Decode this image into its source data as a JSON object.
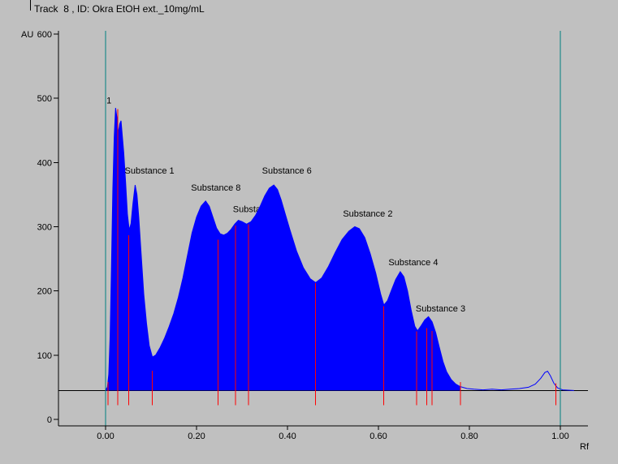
{
  "header": {
    "title": "Track  8 , ID: Okra EtOH ext._10mg/mL"
  },
  "colors": {
    "background": "#c0c0c0",
    "curve": "#0000ff",
    "fill": "#0000ff",
    "marker": "#ff0000",
    "track_line": "#008080",
    "axis": "#000000",
    "text": "#000000"
  },
  "chart_data": {
    "type": "area",
    "title": "Track  8 , ID: Okra EtOH ext._10mg/mL",
    "xlabel": "Rf",
    "ylabel": "AU",
    "xlim": [
      -0.1,
      1.06
    ],
    "ylim": [
      0,
      600
    ],
    "x_ticks": [
      {
        "value": 0.0,
        "label": "0.00"
      },
      {
        "value": 0.2,
        "label": "0.20"
      },
      {
        "value": 0.4,
        "label": "0.40"
      },
      {
        "value": 0.6,
        "label": "0.60"
      },
      {
        "value": 0.8,
        "label": "0.80"
      },
      {
        "value": 1.0,
        "label": "1.00"
      }
    ],
    "y_ticks": [
      {
        "value": 0,
        "label": "0"
      },
      {
        "value": 100,
        "label": "100"
      },
      {
        "value": 200,
        "label": "200"
      },
      {
        "value": 300,
        "label": "300"
      },
      {
        "value": 400,
        "label": "400"
      },
      {
        "value": 500,
        "label": "500"
      },
      {
        "value": 600,
        "label": "600"
      }
    ],
    "baseline_au": 45,
    "track_boundaries": [
      0.0,
      1.0
    ],
    "fill_until_rf": 0.78,
    "marker_bottom_au": 22,
    "curve_points": [
      [
        0.0,
        46
      ],
      [
        0.004,
        50
      ],
      [
        0.007,
        70
      ],
      [
        0.01,
        130
      ],
      [
        0.013,
        240
      ],
      [
        0.016,
        360
      ],
      [
        0.019,
        440
      ],
      [
        0.022,
        485
      ],
      [
        0.025,
        470
      ],
      [
        0.028,
        445
      ],
      [
        0.031,
        460
      ],
      [
        0.034,
        465
      ],
      [
        0.037,
        440
      ],
      [
        0.04,
        415
      ],
      [
        0.044,
        370
      ],
      [
        0.048,
        320
      ],
      [
        0.052,
        295
      ],
      [
        0.056,
        305
      ],
      [
        0.06,
        335
      ],
      [
        0.065,
        365
      ],
      [
        0.069,
        350
      ],
      [
        0.073,
        315
      ],
      [
        0.078,
        260
      ],
      [
        0.084,
        195
      ],
      [
        0.09,
        150
      ],
      [
        0.096,
        115
      ],
      [
        0.103,
        97
      ],
      [
        0.11,
        100
      ],
      [
        0.12,
        112
      ],
      [
        0.13,
        127
      ],
      [
        0.14,
        145
      ],
      [
        0.15,
        165
      ],
      [
        0.16,
        190
      ],
      [
        0.17,
        220
      ],
      [
        0.18,
        255
      ],
      [
        0.19,
        290
      ],
      [
        0.2,
        315
      ],
      [
        0.21,
        332
      ],
      [
        0.22,
        340
      ],
      [
        0.228,
        332
      ],
      [
        0.236,
        315
      ],
      [
        0.244,
        298
      ],
      [
        0.252,
        289
      ],
      [
        0.26,
        287
      ],
      [
        0.268,
        290
      ],
      [
        0.276,
        296
      ],
      [
        0.284,
        304
      ],
      [
        0.292,
        310
      ],
      [
        0.3,
        308
      ],
      [
        0.31,
        304
      ],
      [
        0.32,
        308
      ],
      [
        0.33,
        318
      ],
      [
        0.34,
        332
      ],
      [
        0.35,
        348
      ],
      [
        0.36,
        360
      ],
      [
        0.37,
        365
      ],
      [
        0.378,
        358
      ],
      [
        0.386,
        342
      ],
      [
        0.395,
        320
      ],
      [
        0.405,
        296
      ],
      [
        0.42,
        262
      ],
      [
        0.435,
        236
      ],
      [
        0.45,
        219
      ],
      [
        0.462,
        213
      ],
      [
        0.475,
        220
      ],
      [
        0.49,
        238
      ],
      [
        0.505,
        260
      ],
      [
        0.52,
        280
      ],
      [
        0.535,
        293
      ],
      [
        0.548,
        300
      ],
      [
        0.558,
        297
      ],
      [
        0.57,
        283
      ],
      [
        0.582,
        258
      ],
      [
        0.594,
        228
      ],
      [
        0.605,
        195
      ],
      [
        0.612,
        178
      ],
      [
        0.62,
        185
      ],
      [
        0.628,
        200
      ],
      [
        0.638,
        218
      ],
      [
        0.648,
        230
      ],
      [
        0.656,
        222
      ],
      [
        0.664,
        200
      ],
      [
        0.672,
        170
      ],
      [
        0.68,
        145
      ],
      [
        0.686,
        138
      ],
      [
        0.694,
        146
      ],
      [
        0.702,
        155
      ],
      [
        0.71,
        160
      ],
      [
        0.718,
        152
      ],
      [
        0.726,
        135
      ],
      [
        0.734,
        112
      ],
      [
        0.742,
        90
      ],
      [
        0.75,
        74
      ],
      [
        0.76,
        62
      ],
      [
        0.77,
        55
      ],
      [
        0.78,
        51
      ],
      [
        0.795,
        48
      ],
      [
        0.81,
        47
      ],
      [
        0.83,
        46
      ],
      [
        0.85,
        47
      ],
      [
        0.87,
        46
      ],
      [
        0.89,
        47
      ],
      [
        0.91,
        48
      ],
      [
        0.93,
        50
      ],
      [
        0.945,
        55
      ],
      [
        0.957,
        64
      ],
      [
        0.966,
        73
      ],
      [
        0.972,
        75
      ],
      [
        0.978,
        68
      ],
      [
        0.986,
        56
      ],
      [
        0.994,
        49
      ],
      [
        1.005,
        46
      ],
      [
        1.03,
        45
      ]
    ],
    "peak_markers": [
      {
        "rf": 0.005,
        "top_au": 58
      },
      {
        "rf": 0.027,
        "top_au": 483
      },
      {
        "rf": 0.051,
        "top_au": 287
      },
      {
        "rf": 0.103,
        "top_au": 76
      },
      {
        "rf": 0.247,
        "top_au": 280
      },
      {
        "rf": 0.286,
        "top_au": 302
      },
      {
        "rf": 0.314,
        "top_au": 304
      },
      {
        "rf": 0.462,
        "top_au": 212
      },
      {
        "rf": 0.612,
        "top_au": 176
      },
      {
        "rf": 0.684,
        "top_au": 137
      },
      {
        "rf": 0.706,
        "top_au": 142
      },
      {
        "rf": 0.718,
        "top_au": 138
      },
      {
        "rf": 0.78,
        "top_au": 58
      },
      {
        "rf": 0.99,
        "top_au": 56
      }
    ],
    "peak_labels": [
      {
        "text": "1",
        "rf": 0.002,
        "au": 492,
        "behind": false
      },
      {
        "text": "Substance 1",
        "rf": 0.042,
        "au": 383,
        "behind": false
      },
      {
        "text": "Substance 8",
        "rf": 0.188,
        "au": 356,
        "behind": false
      },
      {
        "text": "Substance 7",
        "rf": 0.28,
        "au": 323,
        "behind": true
      },
      {
        "text": "Substance 6",
        "rf": 0.344,
        "au": 383,
        "behind": false
      },
      {
        "text": "Substance 2",
        "rf": 0.522,
        "au": 316,
        "behind": false
      },
      {
        "text": "Substance 4",
        "rf": 0.622,
        "au": 240,
        "behind": false
      },
      {
        "text": "Substance 3",
        "rf": 0.682,
        "au": 168,
        "behind": false
      }
    ]
  }
}
